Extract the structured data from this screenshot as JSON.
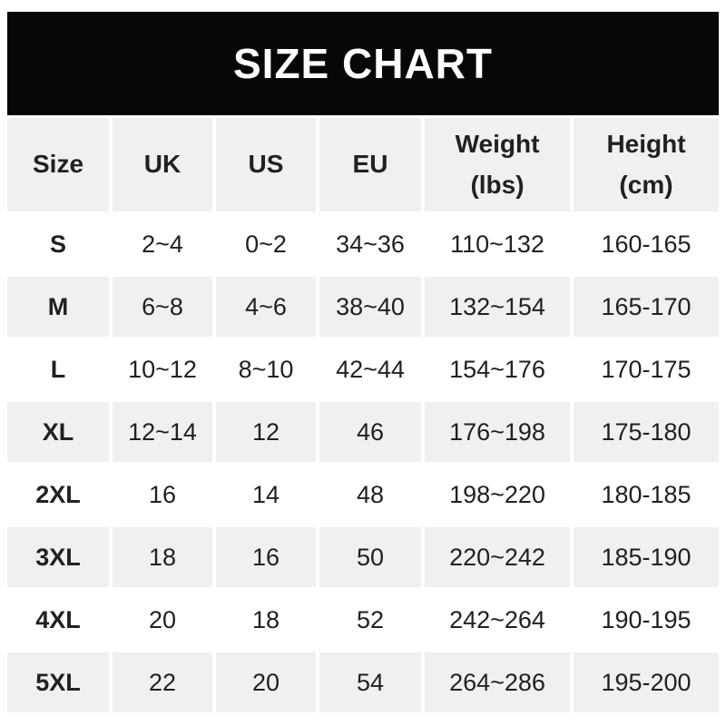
{
  "banner": {
    "title": "SIZE CHART"
  },
  "chart_data": {
    "type": "table",
    "title": "SIZE CHART",
    "columns": [
      "Size",
      "UK",
      "US",
      "EU",
      "Weight\n(lbs)",
      "Height\n(cm)"
    ],
    "rows": [
      [
        "S",
        "2~4",
        "0~2",
        "34~36",
        "110~132",
        "160-165"
      ],
      [
        "M",
        "6~8",
        "4~6",
        "38~40",
        "132~154",
        "165-170"
      ],
      [
        "L",
        "10~12",
        "8~10",
        "42~44",
        "154~176",
        "170-175"
      ],
      [
        "XL",
        "12~14",
        "12",
        "46",
        "176~198",
        "175-180"
      ],
      [
        "2XL",
        "16",
        "14",
        "48",
        "198~220",
        "180-185"
      ],
      [
        "3XL",
        "18",
        "16",
        "50",
        "220~242",
        "185-190"
      ],
      [
        "4XL",
        "20",
        "18",
        "52",
        "242~264",
        "190-195"
      ],
      [
        "5XL",
        "22",
        "20",
        "54",
        "264~286",
        "195-200"
      ]
    ],
    "layout": {
      "stripe_pattern": "header gray, then data rows alternate white/gray starting white",
      "grid": "off",
      "legend": "none"
    }
  },
  "colors": {
    "banner_bg": "#070707",
    "banner_text": "#ffffff",
    "stripe_bg": "#f0f0f1",
    "text": "#212121",
    "page_bg": "#ffffff"
  }
}
